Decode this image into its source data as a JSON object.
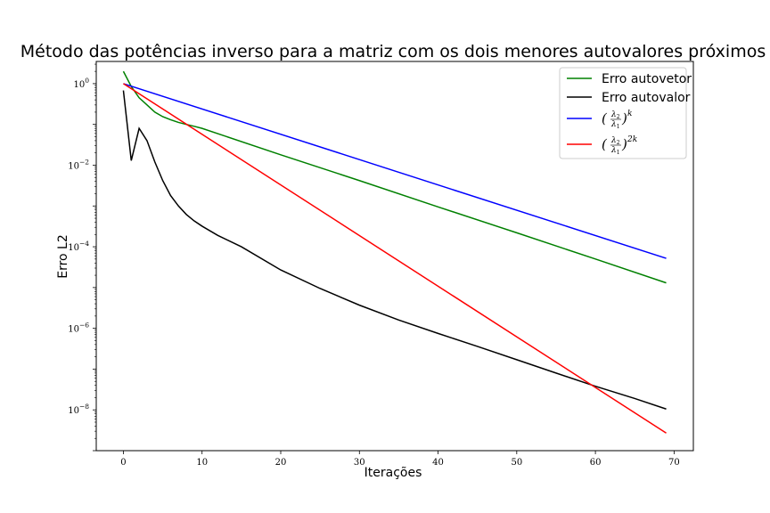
{
  "chart_data": {
    "type": "line",
    "title": "Método das potências inverso para a matriz com os dois menores autovalores próximos",
    "xlabel": "Iterações",
    "ylabel": "Erro L2",
    "yscale": "log",
    "xlim": [
      -3.45,
      72.45
    ],
    "ylim": [
      1e-09,
      3.5
    ],
    "xticks": [
      0,
      10,
      20,
      30,
      40,
      50,
      60,
      70
    ],
    "yticks": [
      {
        "value": 1,
        "base": "10",
        "exp": "0"
      },
      {
        "value": 0.01,
        "base": "10",
        "exp": "−2"
      },
      {
        "value": 0.0001,
        "base": "10",
        "exp": "−4"
      },
      {
        "value": 1e-06,
        "base": "10",
        "exp": "−6"
      },
      {
        "value": 1e-08,
        "base": "10",
        "exp": "−8"
      }
    ],
    "grid": false,
    "legend_position": "top-right",
    "series": [
      {
        "name": "Erro autovetor",
        "color": "#008000",
        "points": [
          [
            0,
            2.0
          ],
          [
            1,
            0.85
          ],
          [
            2,
            0.45
          ],
          [
            3,
            0.3
          ],
          [
            4,
            0.2
          ],
          [
            5,
            0.155
          ],
          [
            6,
            0.13
          ],
          [
            7,
            0.112
          ],
          [
            8,
            0.1
          ],
          [
            9,
            0.09
          ],
          [
            10,
            0.08
          ],
          [
            20,
            0.018
          ],
          [
            30,
            0.0042
          ],
          [
            40,
            0.00095
          ],
          [
            50,
            0.00022
          ],
          [
            60,
            5e-05
          ],
          [
            69,
            1.3e-05
          ]
        ]
      },
      {
        "name": "Erro autovalor",
        "color": "#000000",
        "points": [
          [
            0,
            0.68
          ],
          [
            1,
            0.013
          ],
          [
            2,
            0.08
          ],
          [
            3,
            0.04
          ],
          [
            4,
            0.012
          ],
          [
            5,
            0.0042
          ],
          [
            6,
            0.0018
          ],
          [
            7,
            0.001
          ],
          [
            8,
            0.00062
          ],
          [
            9,
            0.00043
          ],
          [
            10,
            0.00032
          ],
          [
            12,
            0.00019
          ],
          [
            15,
            0.0001
          ],
          [
            20,
            2.7e-05
          ],
          [
            25,
            9.5e-06
          ],
          [
            30,
            3.7e-06
          ],
          [
            35,
            1.6e-06
          ],
          [
            40,
            7.5e-07
          ],
          [
            45,
            3.6e-07
          ],
          [
            50,
            1.7e-07
          ],
          [
            55,
            8e-08
          ],
          [
            60,
            3.8e-08
          ],
          [
            65,
            1.9e-08
          ],
          [
            69,
            1.05e-08
          ]
        ]
      },
      {
        "name_prefix": "(",
        "name_frac_num": "λ",
        "name_frac_num_sub": "2",
        "name_frac_den": "λ",
        "name_frac_den_sub": "1",
        "name_suffix": ")",
        "name_power": "k",
        "color": "#0000ff",
        "points": [
          [
            0,
            1.0
          ],
          [
            69,
            5.2e-05
          ]
        ]
      },
      {
        "name_prefix": "(",
        "name_frac_num": "λ",
        "name_frac_num_sub": "2",
        "name_frac_den": "λ",
        "name_frac_den_sub": "1",
        "name_suffix": ")",
        "name_power": "2k",
        "color": "#ff0000",
        "points": [
          [
            0,
            1.0
          ],
          [
            69,
            2.7e-09
          ]
        ]
      }
    ]
  }
}
